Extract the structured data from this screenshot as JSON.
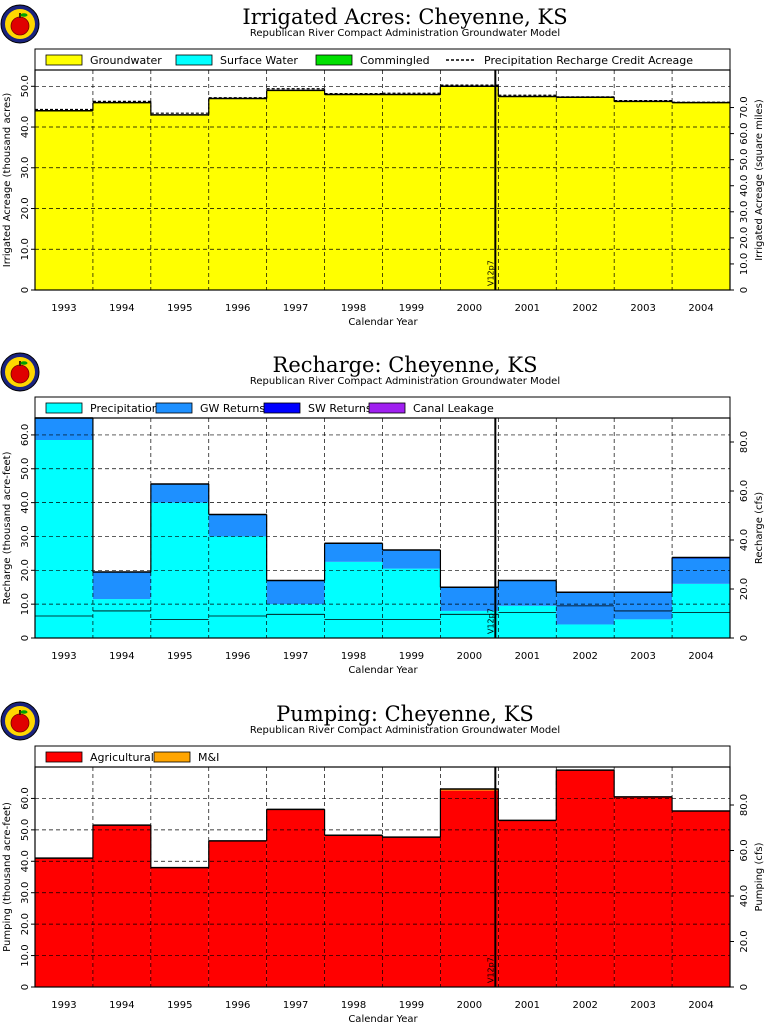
{
  "chart_data": [
    {
      "type": "bar",
      "title": "Irrigated Acres: Cheyenne, KS",
      "subtitle": "Republican River Compact Administration Groundwater Model",
      "xlabel": "Calendar Year",
      "ylabel": "Irrigated Acreage (thousand acres)",
      "y2label": "Irrigated Acreage (square miles)",
      "categories": [
        "1993",
        "1994",
        "1995",
        "1996",
        "1997",
        "1998",
        "1999",
        "2000",
        "2001",
        "2002",
        "2003",
        "2004"
      ],
      "ylim": [
        0,
        54
      ],
      "yticks": [
        0,
        10.0,
        20.0,
        30.0,
        40.0,
        50.0
      ],
      "y2lim": [
        0,
        84.4
      ],
      "y2ticks": [
        0,
        10.0,
        20.0,
        30.0,
        40.0,
        50.0,
        60.0,
        70.0
      ],
      "grid": true,
      "legend_position": "top",
      "series": [
        {
          "name": "Groundwater",
          "color": "#ffff00",
          "values": [
            44.0,
            46.0,
            43.0,
            47.0,
            49.0,
            48.0,
            48.0,
            50.0,
            47.5,
            47.3,
            46.3,
            46.0
          ]
        },
        {
          "name": "Surface Water",
          "color": "#00ffff",
          "values": [
            0,
            0,
            0,
            0,
            0,
            0,
            0,
            0,
            0,
            0,
            0,
            0
          ]
        },
        {
          "name": "Commingled",
          "color": "#00e000",
          "values": [
            0,
            0,
            0,
            0,
            0,
            0,
            0,
            0,
            0,
            0,
            0,
            0
          ]
        },
        {
          "name": "Precipitation Recharge Credit Acreage",
          "style": "dashed",
          "values": [
            44.3,
            46.3,
            43.4,
            47.2,
            49.4,
            48.2,
            48.3,
            50.3,
            47.8,
            47.4,
            46.5,
            46.1
          ]
        }
      ],
      "marker": {
        "label": "V12p7",
        "between": [
          "2000",
          "2001"
        ]
      }
    },
    {
      "type": "bar",
      "title": "Recharge: Cheyenne, KS",
      "subtitle": "Republican River Compact Administration Groundwater Model",
      "xlabel": "Calendar Year",
      "ylabel": "Recharge (thousand acre-feet)",
      "y2label": "Recharge (cfs)",
      "categories": [
        "1993",
        "1994",
        "1995",
        "1996",
        "1997",
        "1998",
        "1999",
        "2000",
        "2001",
        "2002",
        "2003",
        "2004"
      ],
      "ylim": [
        0,
        65
      ],
      "yticks": [
        0,
        10.0,
        20.0,
        30.0,
        40.0,
        50.0,
        60.0
      ],
      "y2lim": [
        0,
        89.8
      ],
      "y2ticks": [
        0,
        20.0,
        40.0,
        60.0,
        80.0
      ],
      "grid": true,
      "legend_position": "top",
      "series": [
        {
          "name": "Precipitation",
          "color": "#00ffff",
          "values": [
            58.5,
            11.5,
            40.0,
            30.0,
            10.0,
            22.5,
            20.5,
            8.0,
            9.5,
            4.0,
            5.5,
            16.0
          ]
        },
        {
          "name": "GW Returns",
          "color": "#1e90ff",
          "values": [
            6.5,
            8.0,
            5.5,
            6.5,
            7.0,
            5.5,
            5.5,
            7.0,
            7.5,
            9.5,
            8.0,
            7.5
          ]
        },
        {
          "name": "SW Returns",
          "color": "#0000ff",
          "values": [
            0,
            0,
            0,
            0,
            0,
            0,
            0,
            0,
            0,
            0,
            0,
            0.3
          ]
        },
        {
          "name": "Canal Leakage",
          "color": "#a020f0",
          "values": [
            0,
            0,
            0,
            0,
            0,
            0,
            0,
            0,
            0,
            0,
            0,
            0
          ]
        }
      ],
      "marker": {
        "label": "V12p7",
        "between": [
          "2000",
          "2001"
        ]
      }
    },
    {
      "type": "bar",
      "title": "Pumping: Cheyenne, KS",
      "subtitle": "Republican River Compact Administration Groundwater Model",
      "xlabel": "Calendar Year",
      "ylabel": "Pumping (thousand acre-feet)",
      "y2label": "Pumping (cfs)",
      "categories": [
        "1993",
        "1994",
        "1995",
        "1996",
        "1997",
        "1998",
        "1999",
        "2000",
        "2001",
        "2002",
        "2003",
        "2004"
      ],
      "ylim": [
        0,
        70
      ],
      "yticks": [
        0,
        10.0,
        20.0,
        30.0,
        40.0,
        50.0,
        60.0
      ],
      "y2lim": [
        0,
        96.7
      ],
      "y2ticks": [
        0,
        20.0,
        40.0,
        60.0,
        80.0
      ],
      "grid": true,
      "legend_position": "top",
      "series": [
        {
          "name": "Agricultural",
          "color": "#ff0000",
          "values": [
            41.0,
            51.5,
            38.0,
            46.5,
            56.5,
            48.3,
            47.7,
            62.5,
            53.0,
            69.0,
            60.5,
            56.0
          ]
        },
        {
          "name": "M&I",
          "color": "#ffa500",
          "values": [
            0,
            0,
            0,
            0,
            0,
            0,
            0,
            0.5,
            0,
            0,
            0,
            0
          ]
        }
      ],
      "marker": {
        "label": "V12p7",
        "between": [
          "2000",
          "2001"
        ]
      }
    }
  ]
}
